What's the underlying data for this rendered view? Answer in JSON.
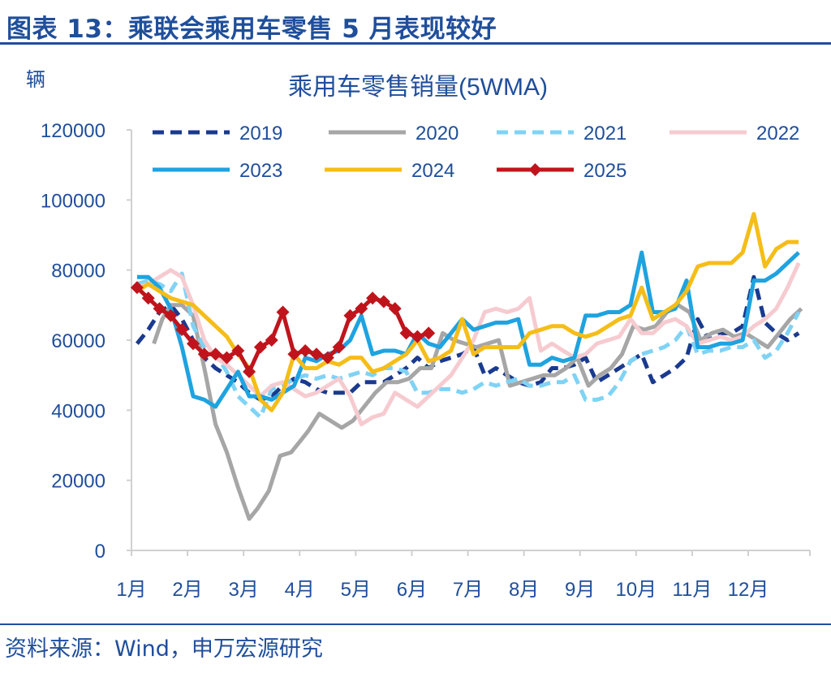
{
  "header": {
    "title": "图表 13：乘联会乘用车零售 5 月表现较好"
  },
  "footer": {
    "source": "资料来源：Wind，申万宏源研究"
  },
  "colors": {
    "brand": "#1f4e9b",
    "s2019": "#1a3a8f",
    "s2020": "#a6a6a6",
    "s2021": "#7fd3f5",
    "s2022": "#f6cbd0",
    "s2023": "#1ea3e0",
    "s2024": "#f5bd18",
    "s2025": "#c0141c"
  },
  "chart_data": {
    "type": "line",
    "title": "乘用车零售销量(5WMA)",
    "ylabel": "辆",
    "xlabel": "",
    "ylim": [
      0,
      120000
    ],
    "yticks": [
      "0",
      "20000",
      "40000",
      "60000",
      "80000",
      "100000",
      "120000"
    ],
    "xlim": [
      1,
      13.1
    ],
    "xticks": [
      "1月",
      "2月",
      "3月",
      "4月",
      "5月",
      "6月",
      "7月",
      "8月",
      "9月",
      "10月",
      "11月",
      "12月"
    ],
    "legend_position": "top",
    "grid": false,
    "series": [
      {
        "name": "2019",
        "color": "#1a3a8f",
        "dash": "dash",
        "marker": false,
        "x": [
          1.1,
          1.3,
          1.5,
          1.7,
          1.9,
          2.1,
          2.3,
          2.5,
          2.7,
          2.9,
          3.1,
          3.3,
          3.5,
          3.7,
          3.9,
          4.1,
          4.3,
          4.5,
          4.7,
          4.9,
          5.1,
          5.3,
          5.5,
          5.7,
          5.9,
          6.1,
          6.3,
          6.5,
          6.7,
          6.9,
          7.1,
          7.3,
          7.5,
          7.7,
          7.9,
          8.1,
          8.3,
          8.5,
          8.7,
          8.9,
          9.1,
          9.3,
          9.5,
          9.7,
          9.9,
          10.1,
          10.3,
          10.5,
          10.7,
          10.9,
          11.1,
          11.3,
          11.5,
          11.7,
          11.9,
          12.1,
          12.3,
          12.5,
          12.7,
          12.9
        ],
        "y": [
          59000,
          63000,
          68000,
          70000,
          66000,
          60000,
          55000,
          52000,
          50000,
          48000,
          45000,
          43000,
          44000,
          47000,
          49000,
          48000,
          46000,
          45000,
          45000,
          45000,
          48000,
          48000,
          48000,
          50000,
          52000,
          55000,
          52000,
          54000,
          55000,
          56000,
          58000,
          50000,
          52000,
          50000,
          48000,
          47000,
          48000,
          52000,
          52000,
          53000,
          55000,
          48000,
          50000,
          52000,
          54000,
          56000,
          48000,
          50000,
          52000,
          55000,
          66000,
          60000,
          62000,
          62000,
          64000,
          78000,
          65000,
          62000,
          60000,
          62000
        ]
      },
      {
        "name": "2020",
        "color": "#a6a6a6",
        "dash": "solid",
        "marker": false,
        "x": [
          1.4,
          1.55,
          1.7,
          1.9,
          2.1,
          2.3,
          2.5,
          2.7,
          2.9,
          3.1,
          3.25,
          3.45,
          3.65,
          3.85,
          4.0,
          4.15,
          4.35,
          4.55,
          4.75,
          4.95,
          5.15,
          5.35,
          5.55,
          5.75,
          5.95,
          6.15,
          6.35,
          6.55,
          6.75,
          6.95,
          7.15,
          7.35,
          7.55,
          7.75,
          7.95,
          8.15,
          8.35,
          8.55,
          8.75,
          8.95,
          9.15,
          9.35,
          9.55,
          9.75,
          9.95,
          10.15,
          10.35,
          10.55,
          10.75,
          10.95,
          11.15,
          11.35,
          11.55,
          11.75,
          11.95,
          12.15,
          12.35,
          12.55,
          12.75,
          12.95
        ],
        "y": [
          59000,
          66000,
          70000,
          70000,
          67000,
          52000,
          36000,
          28000,
          18000,
          9000,
          12000,
          17000,
          27000,
          28000,
          31000,
          34000,
          39000,
          37000,
          35000,
          37000,
          41000,
          45000,
          48000,
          48000,
          49000,
          52000,
          52000,
          62000,
          60000,
          59000,
          58000,
          59000,
          60000,
          47000,
          48000,
          49000,
          50000,
          50000,
          52000,
          55000,
          47000,
          50000,
          52000,
          56000,
          64000,
          63000,
          64000,
          68000,
          70000,
          68000,
          60000,
          62000,
          63000,
          61000,
          62000,
          60000,
          58000,
          62000,
          66000,
          69000
        ]
      },
      {
        "name": "2021",
        "color": "#7fd3f5",
        "dash": "dash",
        "marker": false,
        "x": [
          1.1,
          1.3,
          1.5,
          1.7,
          1.9,
          2.1,
          2.3,
          2.5,
          2.7,
          2.9,
          3.1,
          3.3,
          3.5,
          3.7,
          3.9,
          4.1,
          4.3,
          4.5,
          4.7,
          4.9,
          5.1,
          5.3,
          5.5,
          5.7,
          5.9,
          6.1,
          6.3,
          6.5,
          6.7,
          6.9,
          7.1,
          7.3,
          7.5,
          7.7,
          7.9,
          8.1,
          8.3,
          8.5,
          8.7,
          8.9,
          9.1,
          9.3,
          9.5,
          9.7,
          9.9,
          10.1,
          10.3,
          10.5,
          10.7,
          10.9,
          11.1,
          11.3,
          11.5,
          11.7,
          11.9,
          12.1,
          12.3,
          12.5,
          12.7,
          12.9
        ],
        "y": [
          76000,
          77000,
          76000,
          74000,
          79000,
          64000,
          58000,
          56000,
          51000,
          44000,
          41000,
          38000,
          46000,
          47000,
          49000,
          50000,
          49000,
          50000,
          49000,
          50000,
          51000,
          50000,
          52000,
          52000,
          51000,
          45000,
          45000,
          46000,
          46000,
          45000,
          46000,
          48000,
          47000,
          48000,
          49000,
          47000,
          47000,
          48000,
          48000,
          50000,
          43000,
          43000,
          44000,
          48000,
          54000,
          56000,
          57000,
          58000,
          60000,
          64000,
          56000,
          57000,
          57000,
          58000,
          58000,
          60000,
          55000,
          57000,
          62000,
          68000
        ]
      },
      {
        "name": "2022",
        "color": "#f6cbd0",
        "dash": "solid",
        "marker": false,
        "x": [
          1.1,
          1.3,
          1.5,
          1.7,
          1.9,
          2.1,
          2.3,
          2.5,
          2.7,
          2.9,
          3.1,
          3.3,
          3.5,
          3.7,
          3.9,
          4.1,
          4.3,
          4.5,
          4.7,
          4.9,
          5.1,
          5.3,
          5.5,
          5.7,
          5.9,
          6.1,
          6.3,
          6.5,
          6.7,
          6.9,
          7.1,
          7.3,
          7.5,
          7.7,
          7.9,
          8.1,
          8.3,
          8.5,
          8.7,
          8.9,
          9.1,
          9.3,
          9.5,
          9.7,
          9.9,
          10.1,
          10.3,
          10.5,
          10.7,
          10.9,
          11.1,
          11.3,
          11.5,
          11.7,
          11.9,
          12.1,
          12.3,
          12.5,
          12.7,
          12.9
        ],
        "y": [
          75000,
          76000,
          78000,
          80000,
          78000,
          70000,
          60000,
          55000,
          53000,
          50000,
          47000,
          44000,
          47000,
          48000,
          46000,
          44000,
          45000,
          47000,
          49000,
          44000,
          36000,
          38000,
          39000,
          45000,
          43000,
          41000,
          44000,
          47000,
          50000,
          55000,
          60000,
          68000,
          69000,
          68000,
          69000,
          72000,
          57000,
          59000,
          57000,
          55000,
          56000,
          59000,
          60000,
          61000,
          66000,
          62000,
          62000,
          65000,
          66000,
          64000,
          59000,
          60000,
          61000,
          60000,
          61000,
          64000,
          66000,
          69000,
          75000,
          82000
        ]
      },
      {
        "name": "2023",
        "color": "#1ea3e0",
        "dash": "solid",
        "marker": false,
        "x": [
          1.1,
          1.3,
          1.5,
          1.7,
          1.9,
          2.1,
          2.3,
          2.5,
          2.7,
          2.9,
          3.1,
          3.3,
          3.5,
          3.7,
          3.9,
          4.1,
          4.3,
          4.5,
          4.7,
          4.9,
          5.1,
          5.3,
          5.5,
          5.7,
          5.9,
          6.1,
          6.3,
          6.5,
          6.7,
          6.9,
          7.1,
          7.3,
          7.5,
          7.7,
          7.9,
          8.1,
          8.3,
          8.5,
          8.7,
          8.9,
          9.1,
          9.3,
          9.5,
          9.7,
          9.9,
          10.1,
          10.3,
          10.5,
          10.7,
          10.9,
          11.1,
          11.3,
          11.5,
          11.7,
          11.9,
          12.1,
          12.3,
          12.5,
          12.7,
          12.9
        ],
        "y": [
          78000,
          78000,
          75000,
          69000,
          58000,
          44000,
          43000,
          41000,
          46000,
          51000,
          44000,
          44000,
          43000,
          45000,
          47000,
          55000,
          54000,
          56000,
          57000,
          60000,
          67000,
          56000,
          57000,
          57000,
          56000,
          62000,
          59000,
          58000,
          62000,
          66000,
          63000,
          64000,
          65000,
          65000,
          66000,
          53000,
          53000,
          55000,
          54000,
          55000,
          67000,
          67000,
          68000,
          68000,
          70000,
          85000,
          68000,
          68000,
          69000,
          77000,
          58000,
          58000,
          59000,
          59000,
          60000,
          77000,
          77000,
          79000,
          82000,
          85000
        ]
      },
      {
        "name": "2024",
        "color": "#f5bd18",
        "dash": "solid",
        "marker": false,
        "x": [
          1.1,
          1.3,
          1.5,
          1.7,
          1.9,
          2.1,
          2.3,
          2.5,
          2.7,
          2.9,
          3.1,
          3.3,
          3.5,
          3.7,
          3.9,
          4.1,
          4.3,
          4.5,
          4.7,
          4.9,
          5.1,
          5.3,
          5.5,
          5.7,
          5.9,
          6.1,
          6.3,
          6.5,
          6.7,
          6.9,
          7.1,
          7.3,
          7.5,
          7.7,
          7.9,
          8.1,
          8.3,
          8.5,
          8.7,
          8.9,
          9.1,
          9.3,
          9.5,
          9.7,
          9.9,
          10.1,
          10.3,
          10.5,
          10.7,
          10.9,
          11.1,
          11.3,
          11.5,
          11.7,
          11.9,
          12.1,
          12.3,
          12.5,
          12.7,
          12.9
        ],
        "y": [
          74000,
          76000,
          74000,
          72000,
          71000,
          70000,
          67000,
          64000,
          61000,
          56000,
          52000,
          43000,
          40000,
          45000,
          56000,
          52000,
          52000,
          54000,
          53000,
          55000,
          55000,
          51000,
          52000,
          54000,
          56000,
          60000,
          54000,
          55000,
          57000,
          66000,
          56000,
          58000,
          58000,
          58000,
          58000,
          62000,
          63000,
          64000,
          64000,
          62000,
          61000,
          62000,
          64000,
          66000,
          67000,
          75000,
          66000,
          68000,
          70000,
          74000,
          81000,
          82000,
          82000,
          82000,
          85000,
          96000,
          81000,
          86000,
          88000,
          88000
        ]
      },
      {
        "name": "2025",
        "color": "#c0141c",
        "dash": "solid",
        "marker": true,
        "x": [
          1.1,
          1.3,
          1.5,
          1.7,
          1.9,
          2.1,
          2.3,
          2.5,
          2.7,
          2.9,
          3.1,
          3.3,
          3.5,
          3.7,
          3.9,
          4.1,
          4.3,
          4.5,
          4.7,
          4.9,
          5.1,
          5.3,
          5.5,
          5.7,
          5.9,
          6.1,
          6.3
        ],
        "y": [
          75000,
          72000,
          69000,
          67000,
          63000,
          59000,
          56000,
          56000,
          55000,
          57000,
          51000,
          58000,
          60000,
          68000,
          56000,
          57000,
          56000,
          55000,
          58000,
          67000,
          69000,
          72000,
          71000,
          69000,
          62000,
          61000,
          62000
        ]
      }
    ]
  }
}
